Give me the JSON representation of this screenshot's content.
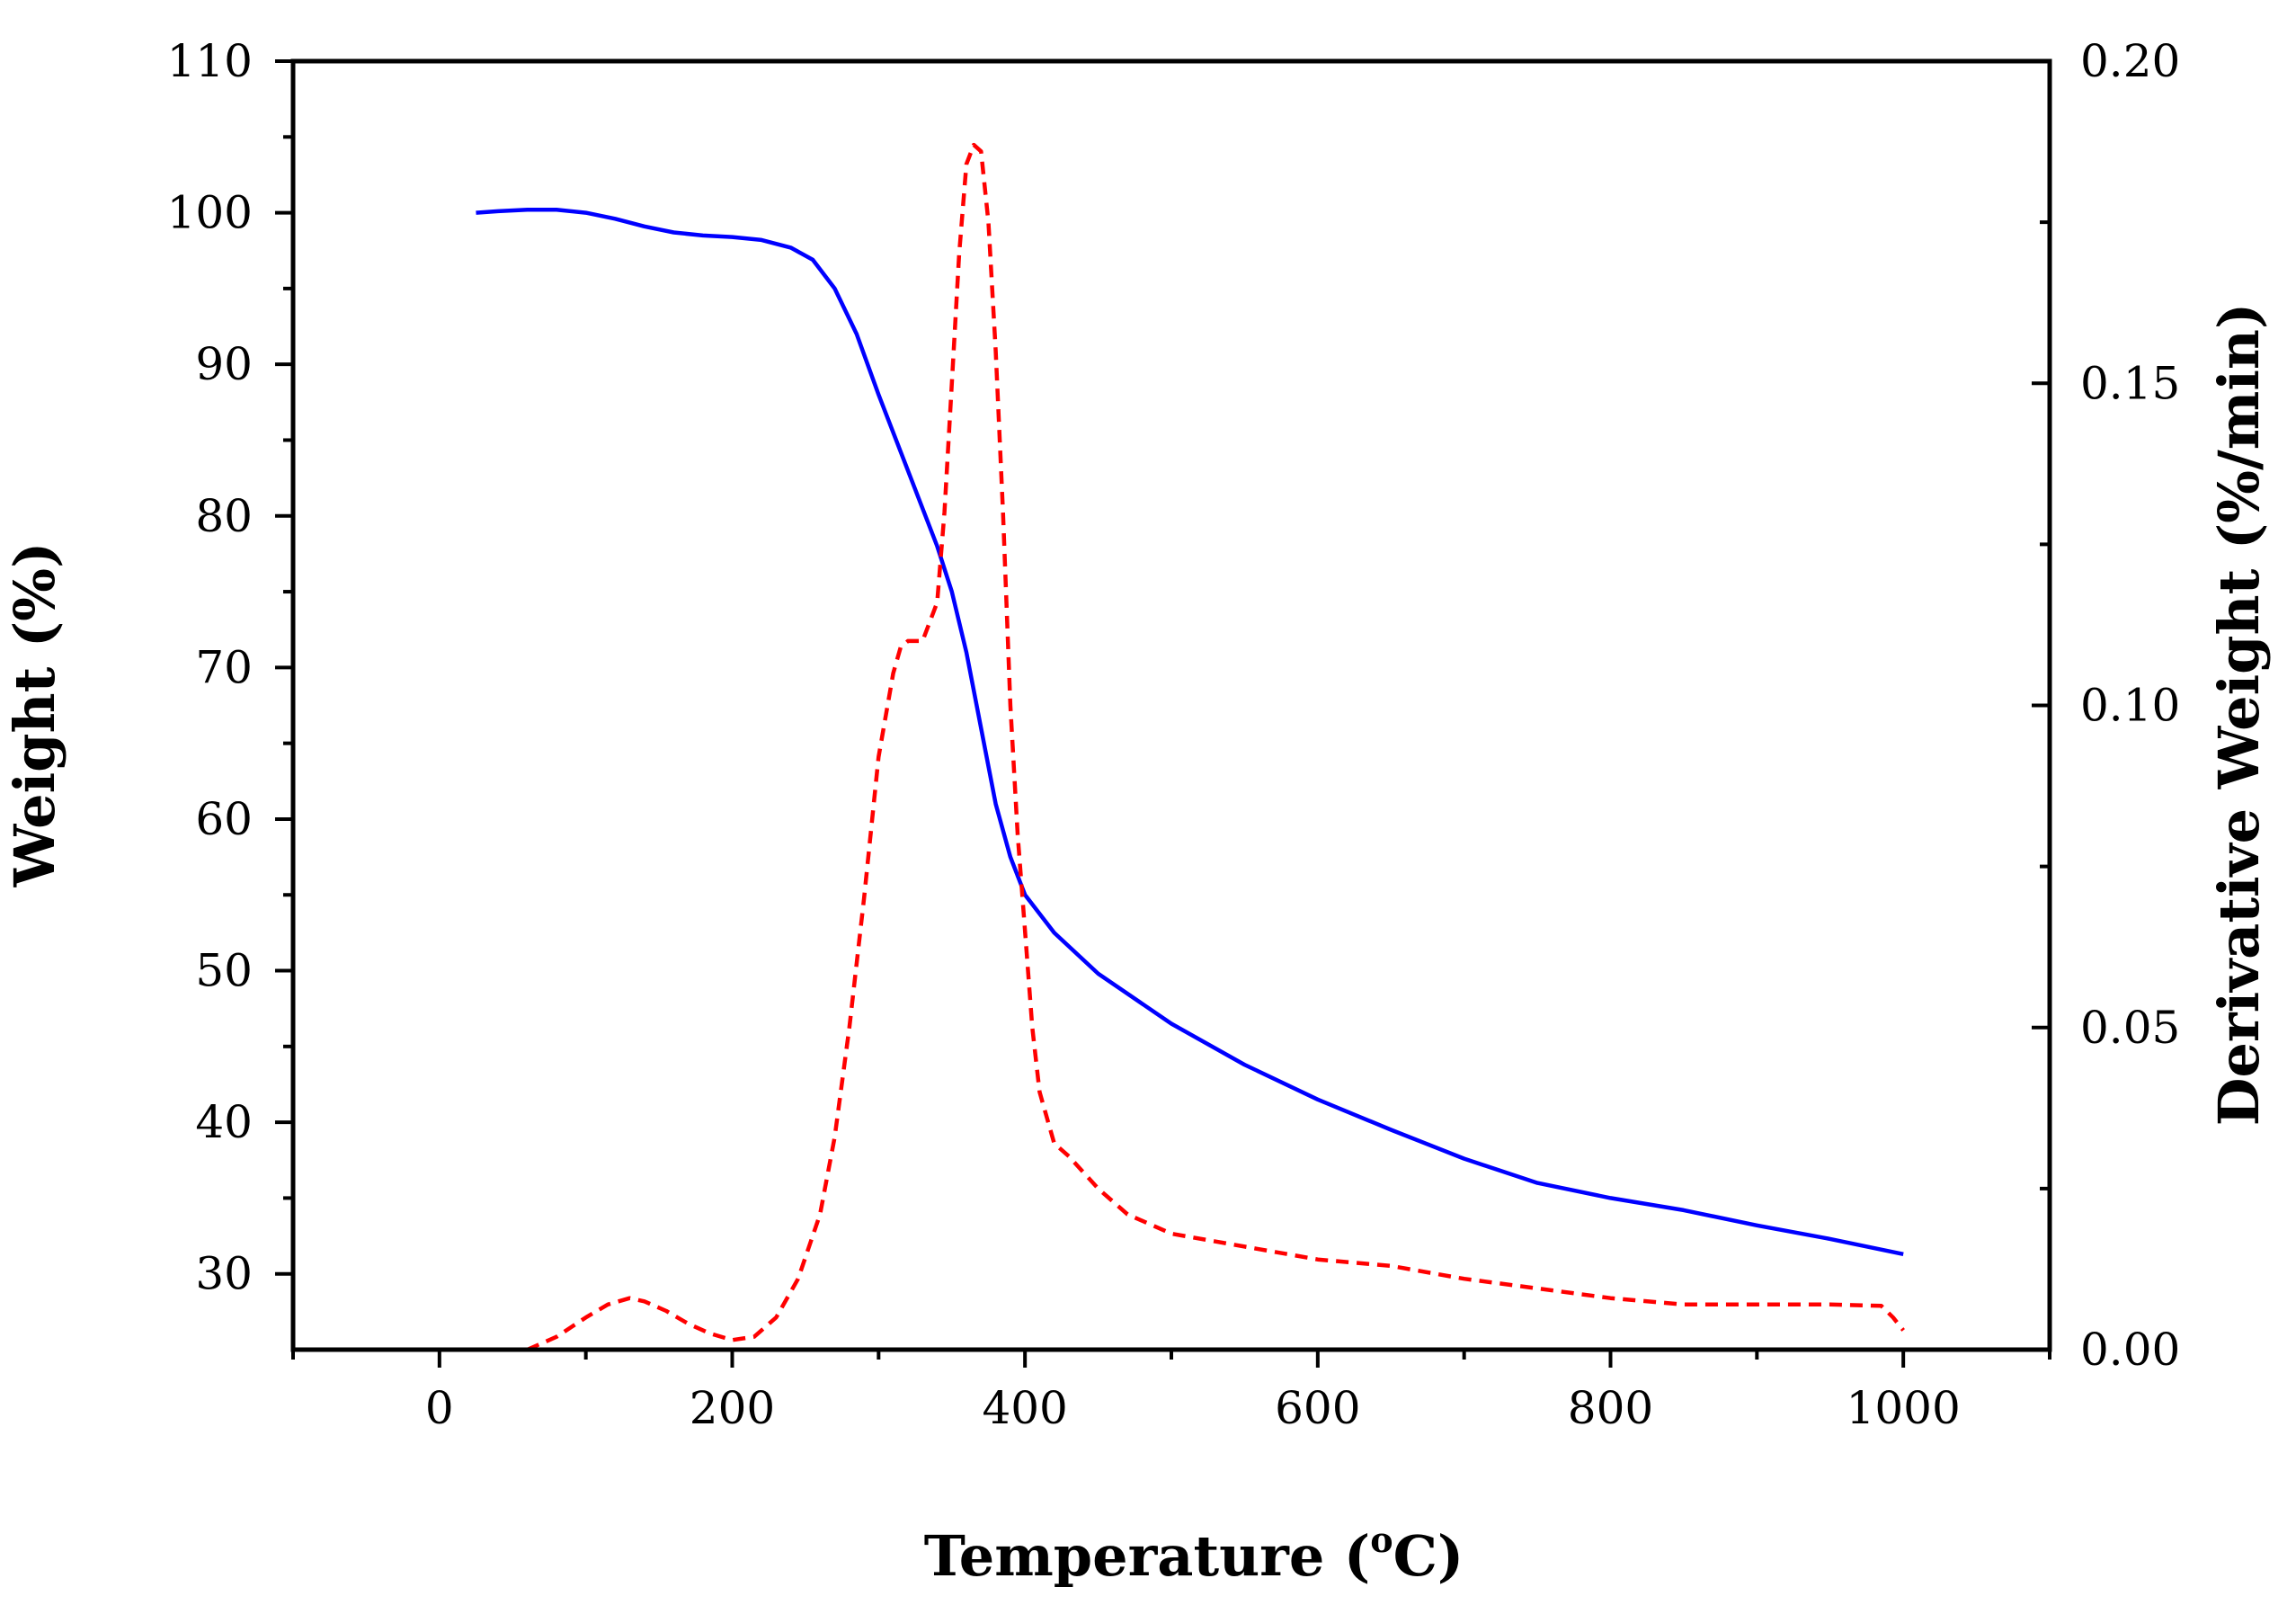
{
  "chart_data": {
    "type": "line",
    "title": "",
    "xlabel": {
      "prefix": "Temperature (",
      "superscript": "o",
      "suffix": "C)"
    },
    "ylabel_left": "Weight (%)",
    "ylabel_right": "Derivative Weight (%/min)",
    "xlim": [
      -100,
      1100
    ],
    "ylim_left": [
      25,
      110
    ],
    "ylim_right": [
      0,
      0.2
    ],
    "x_ticks": [
      0,
      200,
      400,
      600,
      800,
      1000
    ],
    "x_tick_labels": [
      "0",
      "200",
      "400",
      "600",
      "800",
      "1000"
    ],
    "y_left_ticks": [
      30,
      40,
      50,
      60,
      70,
      80,
      90,
      100,
      110
    ],
    "y_left_tick_labels": [
      "30",
      "40",
      "50",
      "60",
      "70",
      "80",
      "90",
      "100",
      "110"
    ],
    "y_right_ticks": [
      0,
      0.05,
      0.1,
      0.15,
      0.2
    ],
    "y_right_tick_labels": [
      "0.00",
      "0.05",
      "0.10",
      "0.15",
      "0.20"
    ],
    "grid": false,
    "series": [
      {
        "name": "Weight",
        "axis": "left",
        "color": "#0000ff",
        "style": "solid",
        "x": [
          25,
          40,
          60,
          80,
          100,
          120,
          140,
          160,
          180,
          200,
          220,
          240,
          255,
          270,
          285,
          300,
          320,
          340,
          350,
          360,
          370,
          380,
          390,
          400,
          420,
          450,
          500,
          550,
          600,
          650,
          700,
          750,
          800,
          850,
          900,
          950,
          1000
        ],
        "y": [
          100.0,
          100.1,
          100.2,
          100.2,
          100.0,
          99.6,
          99.1,
          98.7,
          98.5,
          98.4,
          98.2,
          97.7,
          96.9,
          95.0,
          92.0,
          88.0,
          83.0,
          78.0,
          75.0,
          71.0,
          66.0,
          61.0,
          57.5,
          55.0,
          52.5,
          49.8,
          46.5,
          43.8,
          41.5,
          39.5,
          37.6,
          36.0,
          35.0,
          34.2,
          33.2,
          32.3,
          31.3
        ]
      },
      {
        "name": "Derivative Weight",
        "axis": "right",
        "color": "#ff0000",
        "style": "dashed",
        "x": [
          60,
          80,
          100,
          115,
          130,
          140,
          155,
          170,
          185,
          200,
          215,
          230,
          245,
          260,
          270,
          280,
          290,
          300,
          310,
          315,
          320,
          330,
          340,
          345,
          350,
          355,
          360,
          365,
          370,
          375,
          380,
          385,
          390,
          395,
          400,
          405,
          410,
          420,
          430,
          450,
          470,
          500,
          550,
          600,
          650,
          700,
          750,
          800,
          850,
          900,
          950,
          985,
          993,
          1000
        ],
        "y": [
          0.0,
          0.002,
          0.005,
          0.007,
          0.008,
          0.0075,
          0.006,
          0.004,
          0.0025,
          0.0015,
          0.002,
          0.005,
          0.011,
          0.021,
          0.033,
          0.05,
          0.07,
          0.092,
          0.105,
          0.109,
          0.11,
          0.11,
          0.116,
          0.13,
          0.15,
          0.17,
          0.184,
          0.187,
          0.186,
          0.175,
          0.155,
          0.13,
          0.1,
          0.08,
          0.065,
          0.05,
          0.04,
          0.032,
          0.03,
          0.025,
          0.021,
          0.018,
          0.016,
          0.014,
          0.013,
          0.011,
          0.0095,
          0.008,
          0.007,
          0.007,
          0.007,
          0.0068,
          0.005,
          0.003
        ]
      }
    ]
  }
}
